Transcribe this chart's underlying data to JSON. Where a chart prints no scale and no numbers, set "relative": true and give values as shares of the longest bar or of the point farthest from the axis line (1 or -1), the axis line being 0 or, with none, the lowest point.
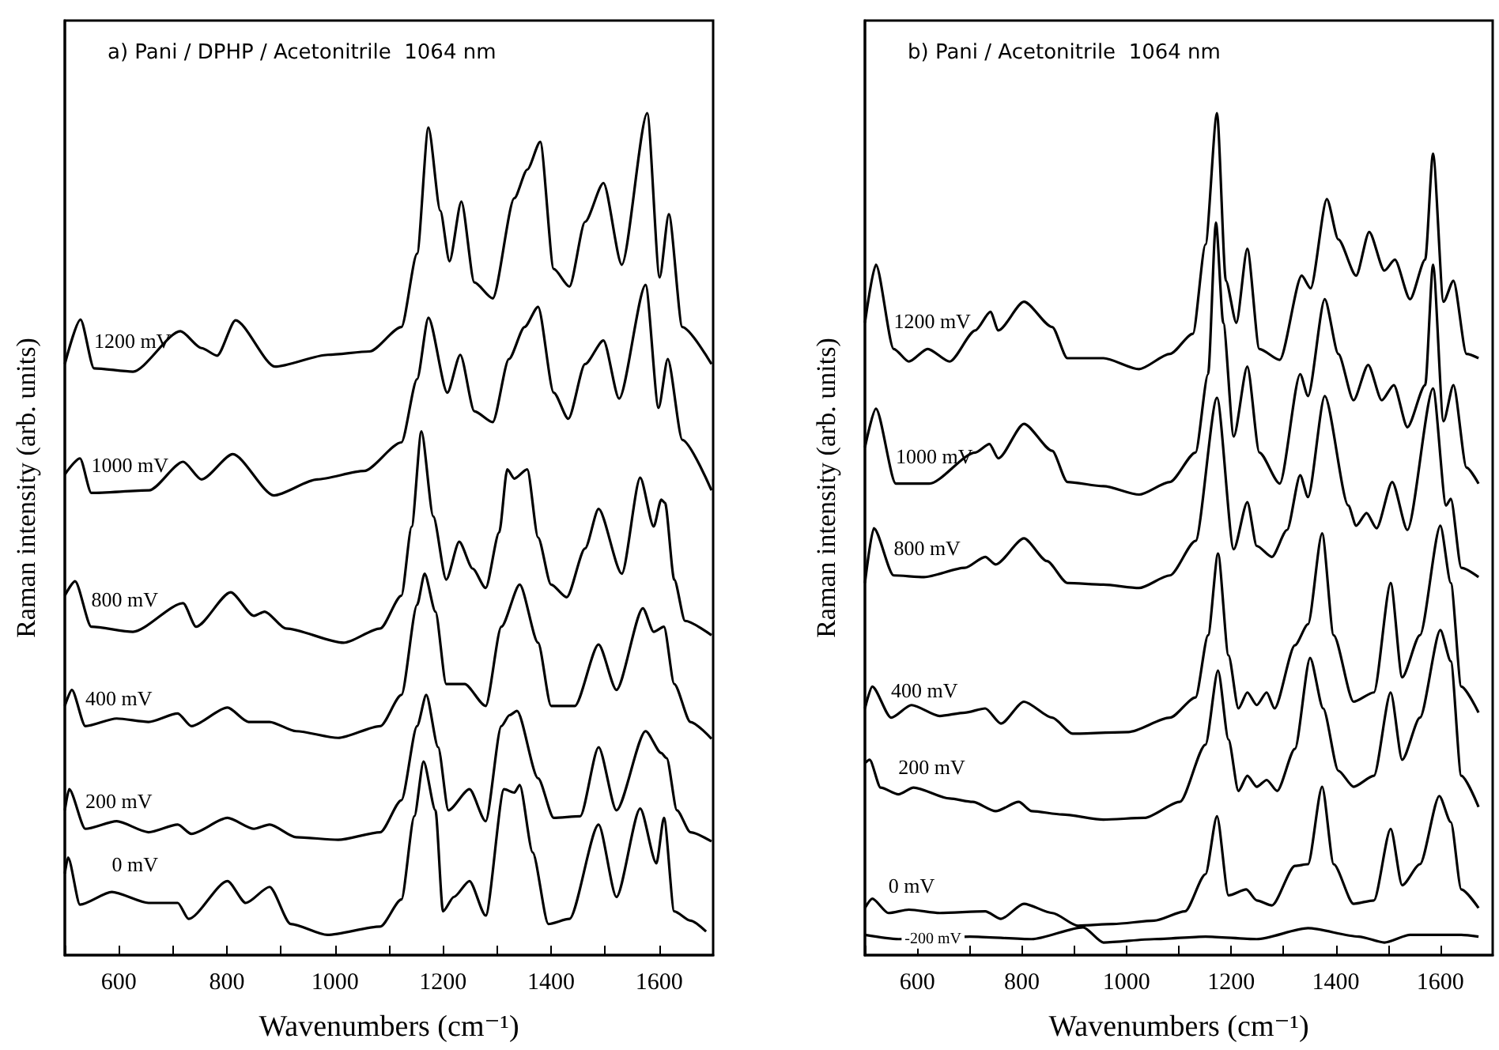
{
  "chart_data": [
    {
      "type": "line",
      "title": "a) Pani / DPHP / Acetonitrile  1064 nm",
      "xlabel": "Wavenumbers (cm⁻¹)",
      "ylabel": "Raman intensity (arb. units)",
      "relative": true,
      "marker": "none",
      "tick_labels": "x",
      "xlim": [
        500,
        1700
      ],
      "xticks": [
        {
          "value": 500,
          "label": null
        },
        600,
        {
          "value": 700,
          "label": null
        },
        800,
        {
          "value": 900,
          "label": null
        },
        1000,
        {
          "value": 1100,
          "label": null
        },
        1200,
        {
          "value": 1300,
          "label": null
        },
        1400,
        {
          "value": 1500,
          "label": null
        },
        1600
      ],
      "series": [
        {
          "name": "1200 mV",
          "color": "#000000",
          "x": [
            500,
            529,
            554,
            626,
            714,
            753,
            782,
            816,
            889,
            987,
            1064,
            1123,
            1152,
            1173,
            1195,
            1212,
            1234,
            1258,
            1292,
            1332,
            1356,
            1380,
            1405,
            1434,
            1463,
            1497,
            1531,
            1578,
            1601,
            1618,
            1643,
            1697
          ],
          "values": [
            0.702,
            0.755,
            0.697,
            0.693,
            0.741,
            0.721,
            0.712,
            0.754,
            0.699,
            0.713,
            0.717,
            0.746,
            0.833,
            0.983,
            0.884,
            0.824,
            0.895,
            0.799,
            0.78,
            0.899,
            0.933,
            0.966,
            0.815,
            0.794,
            0.871,
            0.917,
            0.82,
            1.0,
            0.805,
            0.88,
            0.746,
            0.702
          ]
        },
        {
          "name": "1000 mV",
          "color": "#000000",
          "x": [
            500,
            528,
            549,
            656,
            719,
            753,
            811,
            887,
            967,
            1054,
            1123,
            1152,
            1173,
            1208,
            1232,
            1258,
            1292,
            1322,
            1351,
            1376,
            1405,
            1432,
            1463,
            1497,
            1526,
            1575,
            1599,
            1616,
            1643,
            1697
          ],
          "values": [
            0.571,
            0.59,
            0.549,
            0.552,
            0.586,
            0.565,
            0.595,
            0.546,
            0.565,
            0.575,
            0.609,
            0.684,
            0.757,
            0.668,
            0.713,
            0.646,
            0.633,
            0.708,
            0.746,
            0.77,
            0.668,
            0.637,
            0.702,
            0.73,
            0.661,
            0.796,
            0.65,
            0.708,
            0.612,
            0.552
          ]
        },
        {
          "name": "800 mV",
          "color": "#000000",
          "x": [
            500,
            519,
            549,
            626,
            719,
            743,
            807,
            850,
            870,
            909,
            1016,
            1084,
            1123,
            1142,
            1160,
            1182,
            1206,
            1230,
            1255,
            1279,
            1304,
            1319,
            1332,
            1356,
            1376,
            1400,
            1429,
            1463,
            1488,
            1531,
            1565,
            1590,
            1604,
            1611,
            1628,
            1648,
            1697
          ],
          "values": [
            0.427,
            0.444,
            0.39,
            0.384,
            0.418,
            0.39,
            0.431,
            0.403,
            0.408,
            0.388,
            0.371,
            0.388,
            0.427,
            0.509,
            0.622,
            0.521,
            0.446,
            0.491,
            0.459,
            0.436,
            0.502,
            0.577,
            0.566,
            0.577,
            0.496,
            0.44,
            0.425,
            0.483,
            0.53,
            0.453,
            0.567,
            0.509,
            0.541,
            0.537,
            0.446,
            0.397,
            0.38
          ]
        },
        {
          "name": "400 mV",
          "color": "#000000",
          "x": [
            500,
            513,
            538,
            596,
            655,
            709,
            734,
            801,
            840,
            879,
            928,
            1006,
            1084,
            1123,
            1152,
            1166,
            1186,
            1206,
            1240,
            1279,
            1308,
            1342,
            1376,
            1400,
            1444,
            1488,
            1521,
            1570,
            1590,
            1609,
            1628,
            1658,
            1697
          ],
          "values": [
            0.296,
            0.315,
            0.272,
            0.281,
            0.277,
            0.287,
            0.272,
            0.294,
            0.277,
            0.277,
            0.266,
            0.258,
            0.272,
            0.309,
            0.416,
            0.453,
            0.408,
            0.322,
            0.322,
            0.296,
            0.39,
            0.44,
            0.371,
            0.296,
            0.296,
            0.369,
            0.315,
            0.412,
            0.384,
            0.39,
            0.322,
            0.277,
            0.257
          ]
        },
        {
          "name": "200 mV",
          "color": "#000000",
          "x": [
            500,
            508,
            538,
            596,
            655,
            709,
            734,
            801,
            850,
            879,
            928,
            1006,
            1084,
            1123,
            1152,
            1169,
            1191,
            1210,
            1249,
            1279,
            1308,
            1323,
            1337,
            1376,
            1405,
            1454,
            1488,
            1521,
            1575,
            1604,
            1614,
            1633,
            1658,
            1697
          ],
          "values": [
            0.172,
            0.197,
            0.15,
            0.159,
            0.146,
            0.155,
            0.144,
            0.163,
            0.15,
            0.155,
            0.14,
            0.137,
            0.146,
            0.184,
            0.272,
            0.309,
            0.247,
            0.172,
            0.197,
            0.159,
            0.272,
            0.285,
            0.29,
            0.21,
            0.163,
            0.165,
            0.247,
            0.172,
            0.266,
            0.24,
            0.234,
            0.172,
            0.146,
            0.135
          ]
        },
        {
          "name": "0 mV",
          "color": "#000000",
          "x": [
            500,
            506,
            528,
            587,
            655,
            709,
            729,
            801,
            835,
            879,
            918,
            986,
            1084,
            1123,
            1147,
            1164,
            1186,
            1200,
            1220,
            1249,
            1279,
            1313,
            1332,
            1342,
            1366,
            1395,
            1434,
            1488,
            1521,
            1565,
            1595,
            1609,
            1628,
            1658,
            1687
          ],
          "values": [
            0.097,
            0.116,
            0.06,
            0.075,
            0.062,
            0.062,
            0.043,
            0.088,
            0.062,
            0.081,
            0.037,
            0.024,
            0.034,
            0.066,
            0.165,
            0.23,
            0.172,
            0.052,
            0.069,
            0.088,
            0.047,
            0.197,
            0.193,
            0.202,
            0.122,
            0.037,
            0.043,
            0.155,
            0.069,
            0.174,
            0.109,
            0.163,
            0.052,
            0.041,
            0.028
          ]
        }
      ]
    },
    {
      "type": "line",
      "title": "b) Pani / Acetonitrile  1064 nm",
      "xlabel": "Wavenumbers (cm⁻¹)",
      "ylabel": "Raman intensity (arb. units)",
      "relative": true,
      "marker": "none",
      "tick_labels": "x",
      "xlim": [
        500,
        1700
      ],
      "xticks": [
        {
          "value": 500,
          "label": null
        },
        600,
        {
          "value": 700,
          "label": null
        },
        800,
        {
          "value": 900,
          "label": null
        },
        1000,
        {
          "value": 1100,
          "label": null
        },
        1200,
        {
          "value": 1300,
          "label": null
        },
        1400,
        {
          "value": 1500,
          "label": null
        },
        1600
      ],
      "series": [
        {
          "name": "1200 mV",
          "color": "#000000",
          "x": [
            500,
            521,
            555,
            584,
            620,
            662,
            711,
            740,
            755,
            804,
            858,
            887,
            956,
            1024,
            1083,
            1127,
            1151,
            1173,
            1190,
            1210,
            1231,
            1254,
            1293,
            1335,
            1352,
            1383,
            1405,
            1439,
            1464,
            1493,
            1513,
            1542,
            1571,
            1586,
            1606,
            1625,
            1650,
            1673
          ],
          "values": [
            0.751,
            0.82,
            0.72,
            0.705,
            0.72,
            0.705,
            0.742,
            0.764,
            0.742,
            0.776,
            0.746,
            0.709,
            0.709,
            0.696,
            0.714,
            0.738,
            0.844,
            1.0,
            0.801,
            0.751,
            0.839,
            0.72,
            0.707,
            0.807,
            0.792,
            0.898,
            0.85,
            0.807,
            0.859,
            0.813,
            0.826,
            0.779,
            0.826,
            0.952,
            0.776,
            0.801,
            0.714,
            0.709
          ]
        },
        {
          "name": "1000 mV",
          "color": "#000000",
          "x": [
            500,
            521,
            559,
            623,
            711,
            738,
            755,
            804,
            858,
            887,
            956,
            1024,
            1083,
            1132,
            1156,
            1171,
            1185,
            1205,
            1231,
            1254,
            1293,
            1332,
            1347,
            1379,
            1405,
            1434,
            1462,
            1488,
            1511,
            1537,
            1571,
            1586,
            1606,
            1625,
            1650,
            1673
          ],
          "values": [
            0.603,
            0.649,
            0.56,
            0.56,
            0.597,
            0.607,
            0.59,
            0.631,
            0.599,
            0.562,
            0.557,
            0.547,
            0.562,
            0.597,
            0.69,
            0.87,
            0.751,
            0.616,
            0.699,
            0.597,
            0.56,
            0.69,
            0.664,
            0.779,
            0.714,
            0.659,
            0.701,
            0.659,
            0.677,
            0.627,
            0.677,
            0.82,
            0.634,
            0.677,
            0.579,
            0.56
          ]
        },
        {
          "name": "800 mV",
          "color": "#000000",
          "x": [
            500,
            517,
            555,
            613,
            691,
            730,
            750,
            804,
            848,
            887,
            956,
            1024,
            1083,
            1132,
            1173,
            1205,
            1231,
            1249,
            1278,
            1307,
            1332,
            1347,
            1379,
            1424,
            1439,
            1459,
            1478,
            1508,
            1537,
            1586,
            1611,
            1620,
            1640,
            1673
          ],
          "values": [
            0.442,
            0.507,
            0.451,
            0.449,
            0.46,
            0.473,
            0.464,
            0.495,
            0.468,
            0.442,
            0.44,
            0.436,
            0.451,
            0.492,
            0.662,
            0.482,
            0.538,
            0.486,
            0.473,
            0.505,
            0.57,
            0.544,
            0.664,
            0.534,
            0.51,
            0.525,
            0.507,
            0.562,
            0.505,
            0.673,
            0.534,
            0.542,
            0.46,
            0.449
          ]
        },
        {
          "name": "400 mV",
          "color": "#000000",
          "x": [
            500,
            514,
            550,
            589,
            643,
            691,
            730,
            760,
            804,
            858,
            897,
            1004,
            1083,
            1132,
            1156,
            1175,
            1195,
            1214,
            1231,
            1249,
            1268,
            1283,
            1322,
            1347,
            1374,
            1396,
            1434,
            1473,
            1505,
            1527,
            1561,
            1600,
            1620,
            1640,
            1673
          ],
          "values": [
            0.293,
            0.319,
            0.282,
            0.297,
            0.284,
            0.288,
            0.293,
            0.275,
            0.301,
            0.282,
            0.263,
            0.265,
            0.282,
            0.306,
            0.38,
            0.477,
            0.356,
            0.293,
            0.312,
            0.297,
            0.312,
            0.293,
            0.368,
            0.393,
            0.501,
            0.38,
            0.301,
            0.312,
            0.442,
            0.33,
            0.38,
            0.51,
            0.442,
            0.319,
            0.288
          ]
        },
        {
          "name": "200 mV",
          "color": "#000000",
          "x": [
            500,
            509,
            530,
            564,
            593,
            662,
            706,
            750,
            794,
            819,
            877,
            956,
            1034,
            1102,
            1151,
            1175,
            1195,
            1214,
            1231,
            1249,
            1268,
            1288,
            1322,
            1351,
            1376,
            1405,
            1434,
            1473,
            1505,
            1527,
            1561,
            1600,
            1620,
            1640,
            1673
          ],
          "values": [
            0.228,
            0.232,
            0.199,
            0.191,
            0.199,
            0.186,
            0.182,
            0.171,
            0.182,
            0.171,
            0.167,
            0.161,
            0.163,
            0.182,
            0.25,
            0.338,
            0.256,
            0.195,
            0.213,
            0.2,
            0.208,
            0.195,
            0.245,
            0.353,
            0.293,
            0.219,
            0.2,
            0.213,
            0.312,
            0.232,
            0.282,
            0.386,
            0.349,
            0.213,
            0.176
          ]
        },
        {
          "name": "0 mV",
          "color": "#000000",
          "x": [
            500,
            514,
            545,
            584,
            643,
            730,
            760,
            804,
            858,
            907,
            975,
            1053,
            1112,
            1151,
            1173,
            1195,
            1229,
            1249,
            1278,
            1322,
            1347,
            1374,
            1396,
            1434,
            1473,
            1505,
            1527,
            1561,
            1598,
            1620,
            1640,
            1673
          ],
          "values": [
            0.056,
            0.067,
            0.05,
            0.054,
            0.05,
            0.052,
            0.043,
            0.061,
            0.05,
            0.035,
            0.037,
            0.041,
            0.052,
            0.096,
            0.165,
            0.071,
            0.078,
            0.065,
            0.059,
            0.106,
            0.108,
            0.2,
            0.108,
            0.061,
            0.065,
            0.15,
            0.083,
            0.108,
            0.189,
            0.158,
            0.078,
            0.056
          ]
        },
        {
          "name": "-200 mV",
          "color": "#000000",
          "x": [
            500,
            564,
            701,
            819,
            917,
            956,
            1053,
            1151,
            1249,
            1347,
            1444,
            1493,
            1542,
            1640,
            1673
          ],
          "values": [
            0.024,
            0.019,
            0.022,
            0.019,
            0.033,
            0.015,
            0.019,
            0.022,
            0.019,
            0.032,
            0.022,
            0.015,
            0.024,
            0.024,
            0.022
          ]
        }
      ]
    }
  ]
}
